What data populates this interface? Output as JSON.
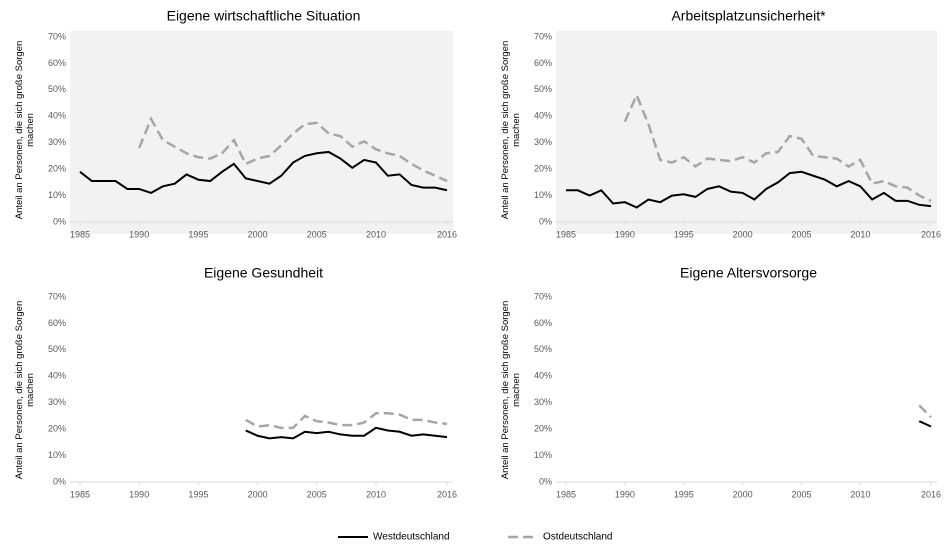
{
  "chart_data": [
    {
      "type": "line",
      "title": "Eigene wirtschaftliche Situation",
      "y_label": "Anteil an Personen, die sich große Sorgen machen",
      "background": "#f2f2f2",
      "x": [
        1985,
        1986,
        1987,
        1988,
        1989,
        1990,
        1991,
        1992,
        1993,
        1994,
        1995,
        1996,
        1997,
        1998,
        1999,
        2000,
        2001,
        2002,
        2003,
        2004,
        2005,
        2006,
        2007,
        2008,
        2009,
        2010,
        2011,
        2012,
        2013,
        2014,
        2015,
        2016
      ],
      "series": [
        {
          "name": "Westdeutschland",
          "color": "#000000",
          "dashed": false,
          "values": [
            19,
            15.5,
            15.5,
            15.5,
            12.5,
            12.5,
            11,
            13.5,
            14.5,
            18,
            16,
            15.5,
            19,
            22,
            16.5,
            15.5,
            14.5,
            17.5,
            22.5,
            25,
            26,
            26.5,
            24,
            20.5,
            23.5,
            22.5,
            17.5,
            18,
            14,
            13,
            13,
            12
          ]
        },
        {
          "name": "Ostdeutschland",
          "color": "#a6a6a6",
          "dashed": true,
          "values": [
            null,
            null,
            null,
            null,
            null,
            28,
            39,
            31,
            28.5,
            26,
            24.5,
            24,
            26,
            31,
            22,
            24,
            25,
            29,
            33.5,
            37,
            37.5,
            33.5,
            32.5,
            28.5,
            30.5,
            27.5,
            26,
            25,
            22,
            19.5,
            17.5,
            15.5
          ]
        }
      ],
      "xlim": [
        1985,
        2016
      ],
      "xticks": [
        1985,
        1990,
        1995,
        2000,
        2005,
        2010,
        2016
      ],
      "ylim": [
        0,
        70
      ],
      "yticks": [
        {
          "value": 0,
          "label": "0%"
        },
        {
          "value": 10,
          "label": "10%"
        },
        {
          "value": 20,
          "label": "20%"
        },
        {
          "value": 30,
          "label": "30%"
        },
        {
          "value": 40,
          "label": "40%"
        },
        {
          "value": 50,
          "label": "50%"
        },
        {
          "value": 60,
          "label": "60%"
        },
        {
          "value": 70,
          "label": "70%"
        }
      ],
      "grid": false,
      "legend": "bottom"
    },
    {
      "type": "line",
      "title": "Arbeitsplatzunsicherheit*",
      "y_label": "Anteil an Personen, die sich große Sorgen machen",
      "background": "#f2f2f2",
      "x": [
        1985,
        1986,
        1987,
        1988,
        1989,
        1990,
        1991,
        1992,
        1993,
        1994,
        1995,
        1996,
        1997,
        1998,
        1999,
        2000,
        2001,
        2002,
        2003,
        2004,
        2005,
        2006,
        2007,
        2008,
        2009,
        2010,
        2011,
        2012,
        2013,
        2014,
        2015,
        2016
      ],
      "series": [
        {
          "name": "Westdeutschland",
          "color": "#000000",
          "dashed": false,
          "values": [
            12,
            12,
            10,
            12,
            7,
            7.5,
            5.5,
            8.5,
            7.5,
            10,
            10.5,
            9.5,
            12.5,
            13.5,
            11.5,
            11,
            8.5,
            12.5,
            15,
            18.5,
            19,
            17.5,
            16,
            13.5,
            15.5,
            13.5,
            8.5,
            11,
            8,
            8,
            6.5,
            6
          ]
        },
        {
          "name": "Ostdeutschland",
          "color": "#a6a6a6",
          "dashed": true,
          "values": [
            null,
            null,
            null,
            null,
            null,
            38,
            48,
            37,
            23.5,
            22.5,
            24.5,
            21,
            24,
            23.5,
            23,
            24.5,
            22.5,
            26,
            26.5,
            32.5,
            31.5,
            25,
            24.5,
            24,
            21,
            23.5,
            14.5,
            15.5,
            13.5,
            13,
            10,
            8
          ]
        }
      ],
      "xlim": [
        1985,
        2016
      ],
      "xticks": [
        1985,
        1990,
        1995,
        2000,
        2005,
        2010,
        2016
      ],
      "ylim": [
        0,
        70
      ],
      "yticks": [
        {
          "value": 0,
          "label": "0%"
        },
        {
          "value": 10,
          "label": "10%"
        },
        {
          "value": 20,
          "label": "20%"
        },
        {
          "value": 30,
          "label": "30%"
        },
        {
          "value": 40,
          "label": "40%"
        },
        {
          "value": 50,
          "label": "50%"
        },
        {
          "value": 60,
          "label": "60%"
        },
        {
          "value": 70,
          "label": "70%"
        }
      ],
      "grid": false,
      "legend": "bottom"
    },
    {
      "type": "line",
      "title": "Eigene Gesundheit",
      "y_label": "Anteil an Personen, die sich große Sorgen machen",
      "background": "#ffffff",
      "x": [
        1999,
        2000,
        2001,
        2002,
        2003,
        2004,
        2005,
        2006,
        2007,
        2008,
        2009,
        2010,
        2011,
        2012,
        2013,
        2014,
        2015,
        2016
      ],
      "series": [
        {
          "name": "Westdeutschland",
          "color": "#000000",
          "dashed": false,
          "values": [
            19.5,
            17.5,
            16.5,
            17,
            16.5,
            19,
            18.5,
            19,
            18,
            17.5,
            17.5,
            20.5,
            19.5,
            19,
            17.5,
            18,
            17.5,
            17
          ]
        },
        {
          "name": "Ostdeutschland",
          "color": "#a6a6a6",
          "dashed": true,
          "values": [
            23.5,
            21,
            21.5,
            20.5,
            20.5,
            25,
            23,
            22.5,
            21.5,
            21.5,
            22.5,
            26,
            26,
            25.5,
            23.5,
            23.5,
            22.5,
            22
          ]
        }
      ],
      "xlim": [
        1985,
        2016
      ],
      "xticks": [
        1985,
        1990,
        1995,
        2000,
        2005,
        2010,
        2016
      ],
      "ylim": [
        0,
        70
      ],
      "yticks": [
        {
          "value": 0,
          "label": "0%"
        },
        {
          "value": 10,
          "label": "10%"
        },
        {
          "value": 20,
          "label": "20%"
        },
        {
          "value": 30,
          "label": "30%"
        },
        {
          "value": 40,
          "label": "40%"
        },
        {
          "value": 50,
          "label": "50%"
        },
        {
          "value": 60,
          "label": "60%"
        },
        {
          "value": 70,
          "label": "70%"
        }
      ],
      "grid": false,
      "legend": "bottom"
    },
    {
      "type": "line",
      "title": "Eigene Altersvorsorge",
      "y_label": "Anteil an Personen, die sich große Sorgen machen",
      "background": "#ffffff",
      "x": [
        2015,
        2016
      ],
      "series": [
        {
          "name": "Westdeutschland",
          "color": "#000000",
          "dashed": false,
          "values": [
            23,
            21
          ]
        },
        {
          "name": "Ostdeutschland",
          "color": "#a6a6a6",
          "dashed": true,
          "values": [
            29,
            24.5
          ]
        }
      ],
      "xlim": [
        1985,
        2016
      ],
      "xticks": [
        1985,
        1990,
        1995,
        2000,
        2005,
        2010,
        2016
      ],
      "ylim": [
        0,
        70
      ],
      "yticks": [
        {
          "value": 0,
          "label": "0%"
        },
        {
          "value": 10,
          "label": "10%"
        },
        {
          "value": 20,
          "label": "20%"
        },
        {
          "value": 30,
          "label": "30%"
        },
        {
          "value": 40,
          "label": "40%"
        },
        {
          "value": 50,
          "label": "50%"
        },
        {
          "value": 60,
          "label": "60%"
        },
        {
          "value": 70,
          "label": "70%"
        }
      ],
      "grid": false,
      "legend": "bottom"
    }
  ]
}
